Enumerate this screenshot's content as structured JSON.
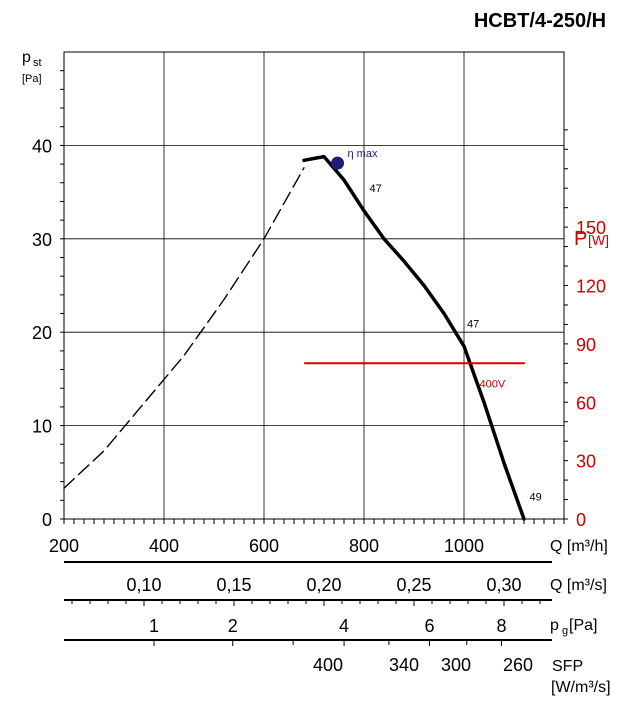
{
  "chart_data": {
    "type": "line",
    "title": "HCBT/4-250/H",
    "y_left": {
      "symbol": "p",
      "subscript": "st",
      "unit": "[Pa]",
      "range": [
        0,
        50
      ],
      "ticks": [
        0,
        10,
        20,
        30,
        40
      ]
    },
    "y_right": {
      "symbol": "P",
      "unit": "[W]",
      "range": [
        0,
        240
      ],
      "ticks": [
        0,
        30,
        60,
        90,
        120,
        150
      ],
      "color": "#d00000"
    },
    "x_axes": [
      {
        "id": "q_m3h",
        "label": "Q [m³/h]",
        "range": [
          200,
          1200
        ],
        "ticks": [
          200,
          400,
          600,
          800,
          1000
        ],
        "tick_labels": [
          "200",
          "400",
          "600",
          "800",
          "1000"
        ]
      },
      {
        "id": "q_m3s",
        "label": "Q [m³/s]",
        "ticks": [
          0.1,
          0.15,
          0.2,
          0.25,
          0.3
        ],
        "tick_labels": [
          "0,10",
          "0,15",
          "0,20",
          "0,25",
          "0,30"
        ]
      },
      {
        "id": "pg",
        "label": "pg[Pa]",
        "label_main": "p",
        "label_sub": "g",
        "label_unit": "[Pa]",
        "ticks": [
          1,
          2,
          4,
          6,
          8
        ],
        "tick_labels": [
          "1",
          "2",
          "4",
          "6",
          "8"
        ]
      },
      {
        "id": "sfp",
        "label": "SFP",
        "label_unit": "[W/m³/s]",
        "tick_labels": [
          "400",
          "340",
          "300",
          "260"
        ]
      }
    ],
    "series": [
      {
        "name": "pressure-dashed",
        "style": "dashed",
        "color": "#000000",
        "x": [
          200,
          280,
          360,
          440,
          520,
          600,
          680
        ],
        "y": [
          3.3,
          7.3,
          12.4,
          17.5,
          23.5,
          30.0,
          37.6
        ]
      },
      {
        "name": "pressure-solid",
        "style": "solid",
        "color": "#000000",
        "x": [
          680,
          720,
          760,
          800,
          840,
          880,
          920,
          960,
          1000,
          1040,
          1080,
          1120
        ],
        "y": [
          38.4,
          38.8,
          36.3,
          33.0,
          30.0,
          27.6,
          25.0,
          22.0,
          18.5,
          12.5,
          6.0,
          0
        ]
      },
      {
        "name": "400V",
        "style": "solid",
        "color": "#d00000",
        "axis": "right",
        "x": [
          682,
          1120
        ],
        "y": [
          80,
          80
        ]
      }
    ],
    "annotations": [
      {
        "text": "η max",
        "x": 747,
        "y": 38.1,
        "type": "point",
        "color": "#1c1c7a"
      },
      {
        "text": "47",
        "x": 795,
        "y": 35.0
      },
      {
        "text": "47",
        "x": 990,
        "y": 20.5
      },
      {
        "text": "49",
        "x": 1115,
        "y": 2.0
      },
      {
        "text": "400V",
        "x": 1015,
        "y": 14.1,
        "color": "#d00000"
      }
    ],
    "grid": true
  }
}
